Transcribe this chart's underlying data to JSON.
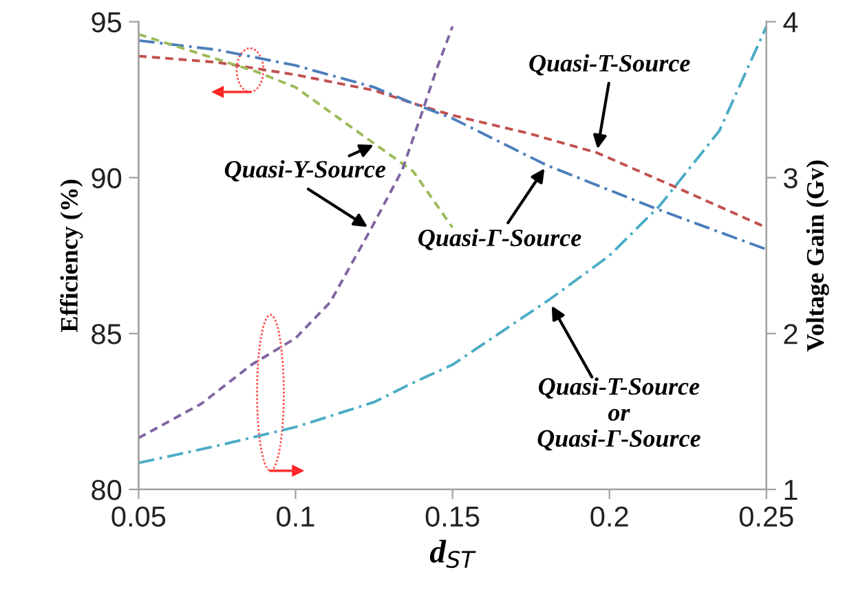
{
  "chart_data": {
    "type": "line",
    "xlabel": "d$_{ST}$",
    "ylabel": "Efficiency (%)",
    "y2label": "Voltage Gain (Gv)",
    "xlim": [
      0.05,
      0.25
    ],
    "xticks": [
      0.05,
      0.1,
      0.15,
      0.2,
      0.25
    ],
    "ylim": [
      80,
      95
    ],
    "yticks": [
      80,
      85,
      90,
      95
    ],
    "y2lim": [
      1,
      4
    ],
    "y2ticks": [
      1,
      2,
      3,
      4
    ],
    "grid": false,
    "legend": false,
    "marker": "none",
    "series": [
      {
        "color": "#c0504d",
        "line_style": "dashed",
        "x": [
          0.05,
          0.075,
          0.1,
          0.125,
          0.137,
          0.15,
          0.175,
          0.196,
          0.221,
          0.25
        ],
        "values": [
          93.9,
          93.7,
          93.3,
          92.8,
          92.4,
          92.0,
          91.4,
          90.8,
          89.7,
          88.4
        ]
      },
      {
        "color": "#4a7ebb",
        "line_style": "dashdot",
        "x": [
          0.05,
          0.075,
          0.1,
          0.125,
          0.137,
          0.15,
          0.18,
          0.215,
          0.25
        ],
        "values": [
          94.4,
          94.1,
          93.6,
          92.9,
          92.4,
          91.9,
          90.4,
          89.0,
          87.7
        ]
      },
      {
        "color": "#9bbb59",
        "line_style": "dashed",
        "x": [
          0.05,
          0.075,
          0.0875,
          0.1,
          0.1125,
          0.125,
          0.1375,
          0.15
        ],
        "values": [
          94.6,
          93.8,
          93.4,
          92.9,
          92.0,
          91.1,
          90.2,
          88.4
        ]
      },
      {
        "color": "#8064a2",
        "line_style": "dashed",
        "axis": "y2",
        "x": [
          0.05,
          0.07,
          0.086,
          0.1,
          0.111,
          0.124,
          0.134,
          0.14,
          0.145,
          0.15
        ],
        "values": [
          1.33,
          1.55,
          1.8,
          1.97,
          2.2,
          2.67,
          3.05,
          3.4,
          3.7,
          3.97
        ]
      },
      {
        "color": "#4bacc6",
        "line_style": "dashdot",
        "axis": "y2",
        "x": [
          0.05,
          0.075,
          0.1,
          0.125,
          0.137,
          0.15,
          0.181,
          0.2,
          0.216,
          0.235,
          0.25
        ],
        "values": [
          1.17,
          1.28,
          1.4,
          1.56,
          1.68,
          1.8,
          2.22,
          2.5,
          2.82,
          3.3,
          3.97
        ]
      }
    ],
    "annotations": [
      {
        "text": "Quasi-T-Source",
        "x": 0.196,
        "y": 90.8
      },
      {
        "text": "Quasi-Γ-Source",
        "x": 0.18,
        "y": 90.4
      },
      {
        "text": "Quasi-Y-Source",
        "x": 0.126,
        "y": 91.1
      },
      {
        "text": "Quasi-T-Source\nor\nQuasi-Γ-Source",
        "x": 0.181,
        "y": 86.0
      }
    ]
  }
}
